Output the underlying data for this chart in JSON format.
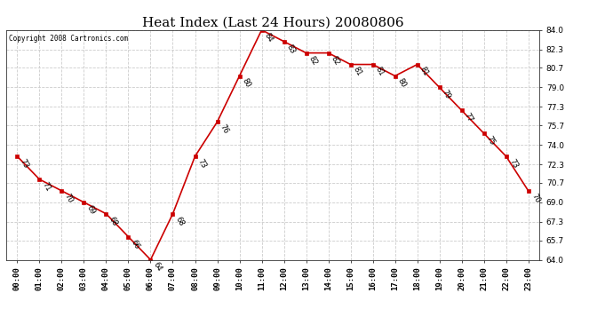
{
  "title": "Heat Index (Last 24 Hours) 20080806",
  "copyright": "Copyright 2008 Cartronics.com",
  "hours": [
    "00:00",
    "01:00",
    "02:00",
    "03:00",
    "04:00",
    "05:00",
    "06:00",
    "07:00",
    "08:00",
    "09:00",
    "10:00",
    "11:00",
    "12:00",
    "13:00",
    "14:00",
    "15:00",
    "16:00",
    "17:00",
    "18:00",
    "19:00",
    "20:00",
    "21:00",
    "22:00",
    "23:00"
  ],
  "x_indices": [
    0,
    1,
    2,
    3,
    4,
    5,
    6,
    7,
    8,
    9,
    10,
    11,
    12,
    13,
    14,
    15,
    16,
    17,
    18,
    19,
    20,
    21,
    22,
    23
  ],
  "y_values": [
    73,
    71,
    70,
    69,
    68,
    66,
    64,
    68,
    73,
    76,
    80,
    84,
    83,
    82,
    82,
    81,
    81,
    80,
    81,
    79,
    77,
    75,
    73,
    70
  ],
  "ylim_min": 64.0,
  "ylim_max": 84.0,
  "yticks": [
    64.0,
    65.7,
    67.3,
    69.0,
    70.7,
    72.3,
    74.0,
    75.7,
    77.3,
    79.0,
    80.7,
    82.3,
    84.0
  ],
  "line_color": "#cc0000",
  "marker_color": "#cc0000",
  "bg_color": "#ffffff",
  "plot_bg_color": "#ffffff",
  "grid_color": "#cccccc",
  "title_fontsize": 11,
  "label_fontsize": 6,
  "tick_fontsize": 6.5,
  "copyright_fontsize": 5.5
}
